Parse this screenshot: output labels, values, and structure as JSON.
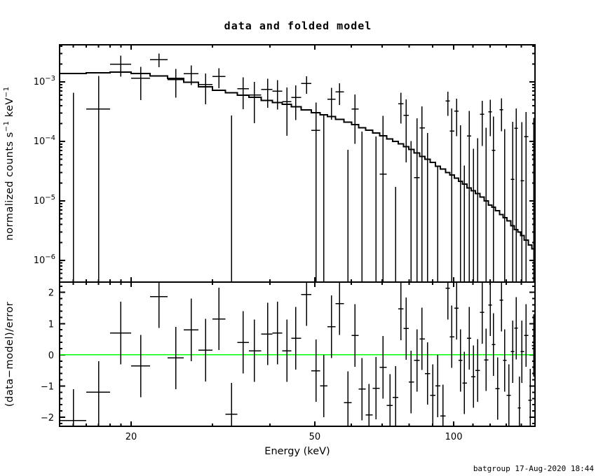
{
  "window": {
    "title": "data and folded model"
  },
  "footer": {
    "timestamp": "batgroup 17-Aug-2020 18:44"
  },
  "colors": {
    "foreground": "#000000",
    "background": "#ffffff",
    "zero_line": "#00ff00"
  },
  "chart_data": {
    "type": "scatter",
    "subtype": "xspec-two-panel-spectrum",
    "title": "data and folded model",
    "xlabel": "Energy (keV)",
    "ylabel_top_parts": [
      {
        "t": "normalized counts s",
        "sup": false
      },
      {
        "t": "−1",
        "sup": true
      },
      {
        "t": " keV",
        "sup": false
      },
      {
        "t": "−1",
        "sup": true
      }
    ],
    "ylabel_bottom": "(data−model)/error",
    "x_scale": "log",
    "x_range": [
      14,
      150
    ],
    "top_y_scale": "log",
    "top_y_range": [
      4.3e-07,
      0.0042
    ],
    "bottom_y_scale": "linear",
    "bottom_y_range": [
      -2.29,
      2.33
    ],
    "grid": false,
    "legend": null,
    "x_ticks": [
      {
        "value": 20,
        "label": "20"
      },
      {
        "value": 50,
        "label": "50"
      },
      {
        "value": 100,
        "label": "100"
      }
    ],
    "x_minor_ticks": [
      15,
      16,
      17,
      18,
      19,
      30,
      40,
      60,
      70,
      80,
      90,
      110,
      120,
      130,
      140
    ],
    "top_y_ticks": [
      {
        "value": 0.001,
        "base": "10",
        "exp": "−3"
      },
      {
        "value": 0.0001,
        "base": "10",
        "exp": "−4"
      },
      {
        "value": 1e-05,
        "base": "10",
        "exp": "−5"
      },
      {
        "value": 1e-06,
        "base": "10",
        "exp": "−6"
      }
    ],
    "bottom_y_ticks": [
      {
        "value": 2,
        "label": "2"
      },
      {
        "value": 1,
        "label": "1"
      },
      {
        "value": 0,
        "label": "0"
      },
      {
        "value": -1,
        "label": "−1"
      },
      {
        "value": -2,
        "label": "−2"
      }
    ],
    "series_notes": "bins: energy bin center (keV); data_err: 1-sigma error on data (counts/s/keV); model: folded model value; delchi: (data-model)/error. data value = model + delchi*data_err. Residual panel error bars are +/-1 by definition.",
    "bins": {
      "columns": [
        "energy_keV",
        "data_err",
        "model",
        "delchi"
      ],
      "rows": [
        [
          15.0,
          0.00066,
          0.00138,
          -2.1
        ],
        [
          17.0,
          0.0009,
          0.00143,
          -1.2
        ],
        [
          19.0,
          0.00076,
          0.00145,
          0.7
        ],
        [
          21.0,
          0.00065,
          0.00138,
          -0.36
        ],
        [
          23.0,
          0.0006,
          0.00126,
          1.86
        ],
        [
          25.0,
          0.00055,
          0.00115,
          -0.1
        ],
        [
          27.0,
          0.0005,
          0.00098,
          0.8
        ],
        [
          29.0,
          0.00048,
          0.00083,
          0.15
        ],
        [
          31.0,
          0.00045,
          0.00072,
          1.15
        ],
        [
          33.0,
          0.00043,
          0.00066,
          -1.9
        ],
        [
          35.0,
          0.00042,
          0.0006,
          0.4
        ],
        [
          37.0,
          0.0004,
          0.00055,
          0.13
        ],
        [
          39.5,
          0.00038,
          0.00049,
          0.67
        ],
        [
          41.5,
          0.00036,
          0.00045,
          0.7
        ],
        [
          43.5,
          0.00034,
          0.00042,
          0.13
        ],
        [
          45.5,
          0.00032,
          0.00038,
          0.53
        ],
        [
          48.0,
          0.00031,
          0.00034,
          1.93
        ],
        [
          50.3,
          0.0003,
          0.000305,
          -0.51
        ],
        [
          52.3,
          0.00029,
          0.00028,
          -1.0
        ],
        [
          54.3,
          0.00028,
          0.00026,
          0.9
        ],
        [
          56.6,
          0.00027,
          0.000234,
          1.64
        ],
        [
          59.0,
          0.00026,
          0.00021,
          -1.53
        ],
        [
          61.1,
          0.00026,
          0.00019,
          0.62
        ],
        [
          63.3,
          0.00025,
          0.00017,
          -1.1
        ],
        [
          65.5,
          0.00025,
          0.000155,
          -1.93
        ],
        [
          67.9,
          0.00024,
          0.000138,
          -1.07
        ],
        [
          70.3,
          0.00024,
          0.000124,
          -0.4
        ],
        [
          72.8,
          0.00024,
          0.00011,
          -1.62
        ],
        [
          74.8,
          0.00023,
          0.0001,
          -1.36
        ],
        [
          76.9,
          0.00023,
          9.1e-05,
          1.47
        ],
        [
          78.9,
          0.00023,
          8.1e-05,
          0.84
        ],
        [
          80.8,
          0.00022,
          7.3e-05,
          -0.87
        ],
        [
          83.2,
          0.00022,
          6.4e-05,
          -0.18
        ],
        [
          85.4,
          0.00022,
          5.6e-05,
          0.51
        ],
        [
          87.7,
          0.00022,
          5e-05,
          -0.6
        ],
        [
          90.1,
          0.00021,
          4.4e-05,
          -1.3
        ],
        [
          92.4,
          0.00021,
          3.8e-05,
          -1.0
        ],
        [
          94.8,
          0.00021,
          3.4e-05,
          -1.96
        ],
        [
          97.1,
          0.00021,
          3e-05,
          2.13
        ],
        [
          99.1,
          0.00021,
          2.7e-05,
          0.58
        ],
        [
          101.5,
          0.0002,
          2.4e-05,
          1.49
        ],
        [
          103.5,
          0.0002,
          2.14e-05,
          -0.18
        ],
        [
          105.5,
          0.0002,
          1.9e-05,
          -0.9
        ],
        [
          108.0,
          0.0002,
          1.65e-05,
          0.53
        ],
        [
          110.4,
          0.0002,
          1.48e-05,
          -0.7
        ],
        [
          112.6,
          0.0002,
          1.32e-05,
          -0.5
        ],
        [
          115.3,
          0.0002,
          1.15e-05,
          1.36
        ],
        [
          117.6,
          0.00019,
          1e-05,
          -0.16
        ],
        [
          120.0,
          0.00019,
          8.5e-06,
          1.6
        ],
        [
          122.0,
          0.00019,
          7.8e-06,
          0.33
        ],
        [
          124.4,
          0.00019,
          6.8e-06,
          -1.08
        ],
        [
          126.9,
          0.00019,
          5.9e-06,
          1.75
        ],
        [
          129.0,
          0.00019,
          5.2e-06,
          -0.18
        ],
        [
          131.6,
          0.00019,
          4.6e-06,
          -1.3
        ],
        [
          134.2,
          0.00019,
          3.8e-06,
          0.1
        ],
        [
          136.5,
          0.00019,
          3.3e-06,
          0.85
        ],
        [
          138.7,
          0.00019,
          3e-06,
          -1.7
        ],
        [
          140.5,
          0.00019,
          2.6e-06,
          0.1
        ],
        [
          143.5,
          0.00019,
          2.2e-06,
          0.62
        ],
        [
          146.5,
          0.00019,
          1.8e-06,
          -1.45
        ],
        [
          149.0,
          0.00019,
          1.55e-06,
          0.3
        ]
      ]
    }
  }
}
